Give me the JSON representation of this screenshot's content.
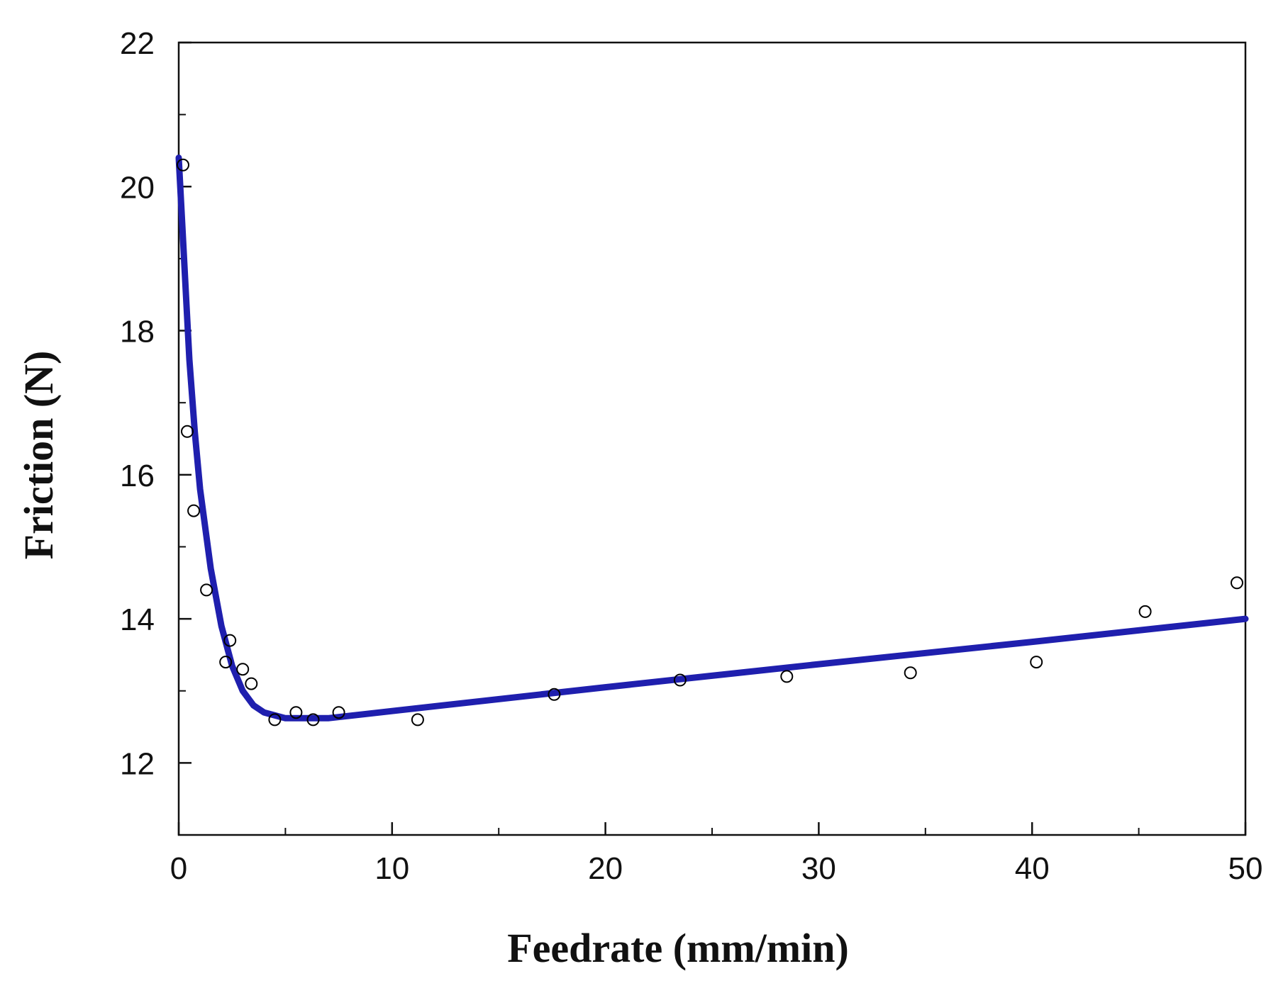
{
  "chart_data": {
    "type": "scatter",
    "title": "",
    "xlabel": "Feedrate  (mm/min)",
    "ylabel": "Friction (N)",
    "xlim": [
      0,
      50
    ],
    "ylim": [
      11,
      22
    ],
    "xticks": [
      0,
      10,
      20,
      30,
      40,
      50
    ],
    "yticks": [
      12,
      14,
      16,
      18,
      20,
      22
    ],
    "x_tick_labels": [
      "0",
      "10",
      "20",
      "30",
      "40",
      "50"
    ],
    "y_tick_labels": [
      "12",
      "14",
      "16",
      "18",
      "20",
      "22"
    ],
    "grid": false,
    "legend": "none",
    "series": [
      {
        "marker": "open-circle",
        "color": "#000000",
        "points": [
          [
            0.2,
            20.3
          ],
          [
            0.4,
            16.6
          ],
          [
            0.7,
            15.5
          ],
          [
            1.3,
            14.4
          ],
          [
            2.2,
            13.4
          ],
          [
            2.4,
            13.7
          ],
          [
            3.0,
            13.3
          ],
          [
            3.4,
            13.1
          ],
          [
            4.5,
            12.6
          ],
          [
            5.5,
            12.7
          ],
          [
            6.3,
            12.6
          ],
          [
            7.5,
            12.7
          ],
          [
            11.2,
            12.6
          ],
          [
            17.6,
            12.95
          ],
          [
            23.5,
            13.15
          ],
          [
            28.5,
            13.2
          ],
          [
            34.3,
            13.25
          ],
          [
            40.2,
            13.4
          ],
          [
            45.3,
            14.1
          ],
          [
            49.6,
            14.5
          ]
        ]
      },
      {
        "kind": "fit-line",
        "color": "#1f1fae",
        "points": [
          [
            0,
            20.4
          ],
          [
            0.25,
            19.0
          ],
          [
            0.5,
            17.6
          ],
          [
            0.75,
            16.6
          ],
          [
            1.0,
            15.8
          ],
          [
            1.5,
            14.7
          ],
          [
            2.0,
            13.9
          ],
          [
            2.5,
            13.35
          ],
          [
            3.0,
            13.0
          ],
          [
            3.5,
            12.8
          ],
          [
            4.0,
            12.7
          ],
          [
            5.0,
            12.62
          ],
          [
            7.0,
            12.62
          ],
          [
            10.0,
            12.72
          ],
          [
            20.0,
            13.05
          ],
          [
            30.0,
            13.37
          ],
          [
            40.0,
            13.68
          ],
          [
            50.0,
            14.0
          ]
        ]
      }
    ]
  }
}
